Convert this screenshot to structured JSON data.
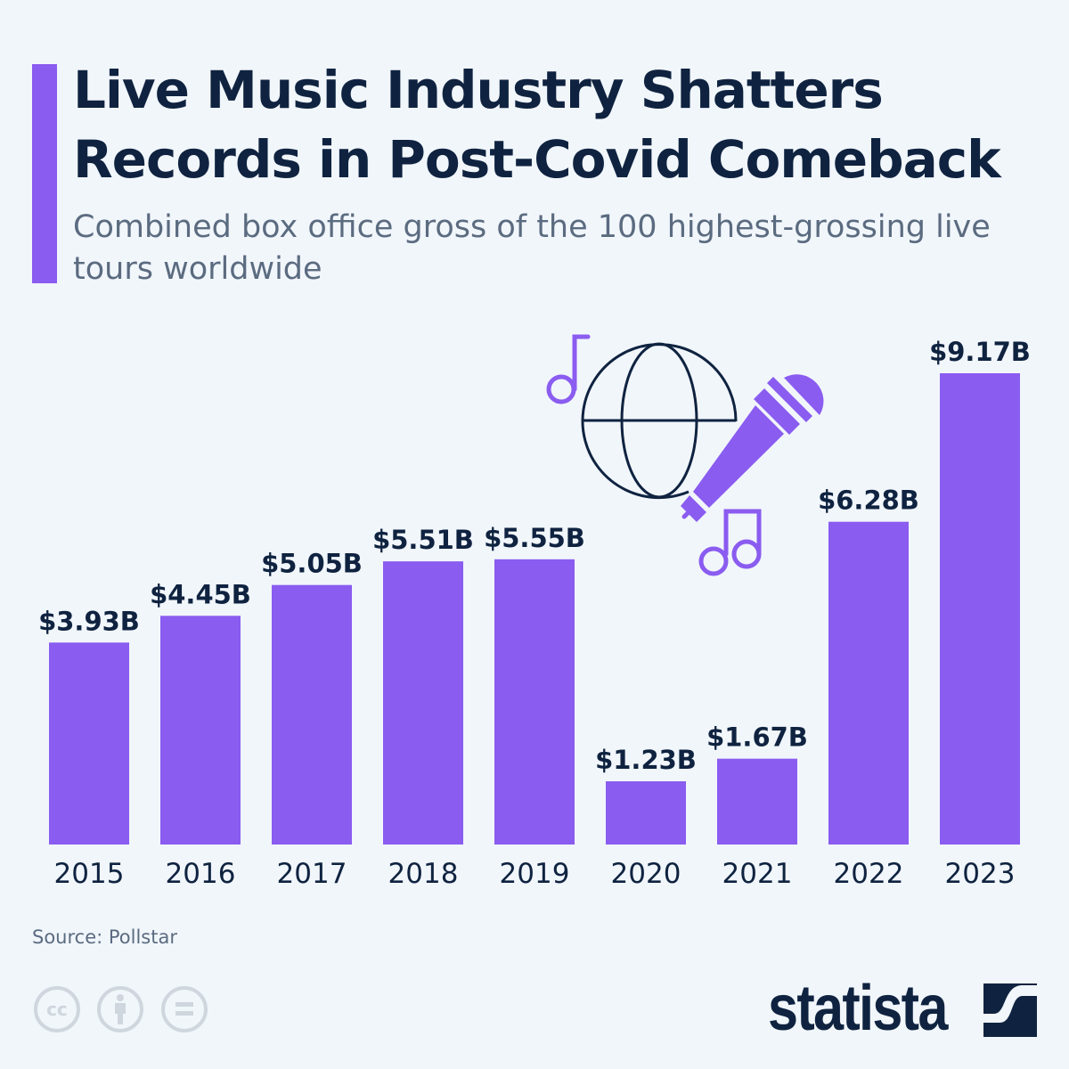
{
  "title": "Live Music Industry Shatters Records in Post-Covid Comeback",
  "subtitle": "Combined box office gross of the 100 highest-grossing live tours worldwide",
  "source": "Source: Pollstar",
  "logo": "statista",
  "colors": {
    "accent": "#8a5cf0",
    "text": "#0f2340",
    "background": "#f1f6fb"
  },
  "icons": [
    "globe-icon",
    "microphone-icon",
    "music-note-icon",
    "double-music-note-icon",
    "cc-icon",
    "by-icon",
    "nd-icon"
  ],
  "chart_data": {
    "type": "bar",
    "categories": [
      "2015",
      "2016",
      "2017",
      "2018",
      "2019",
      "2020",
      "2021",
      "2022",
      "2023"
    ],
    "values": [
      3.93,
      4.45,
      5.05,
      5.51,
      5.55,
      1.23,
      1.67,
      6.28,
      9.17
    ],
    "labels": [
      "$3.93B",
      "$4.45B",
      "$5.05B",
      "$5.51B",
      "$5.55B",
      "$1.23B",
      "$1.67B",
      "$6.28B",
      "$9.17B"
    ],
    "unit": "billion U.S. dollars",
    "ylim": [
      0,
      9.17
    ],
    "grid": false,
    "legend": "none"
  }
}
